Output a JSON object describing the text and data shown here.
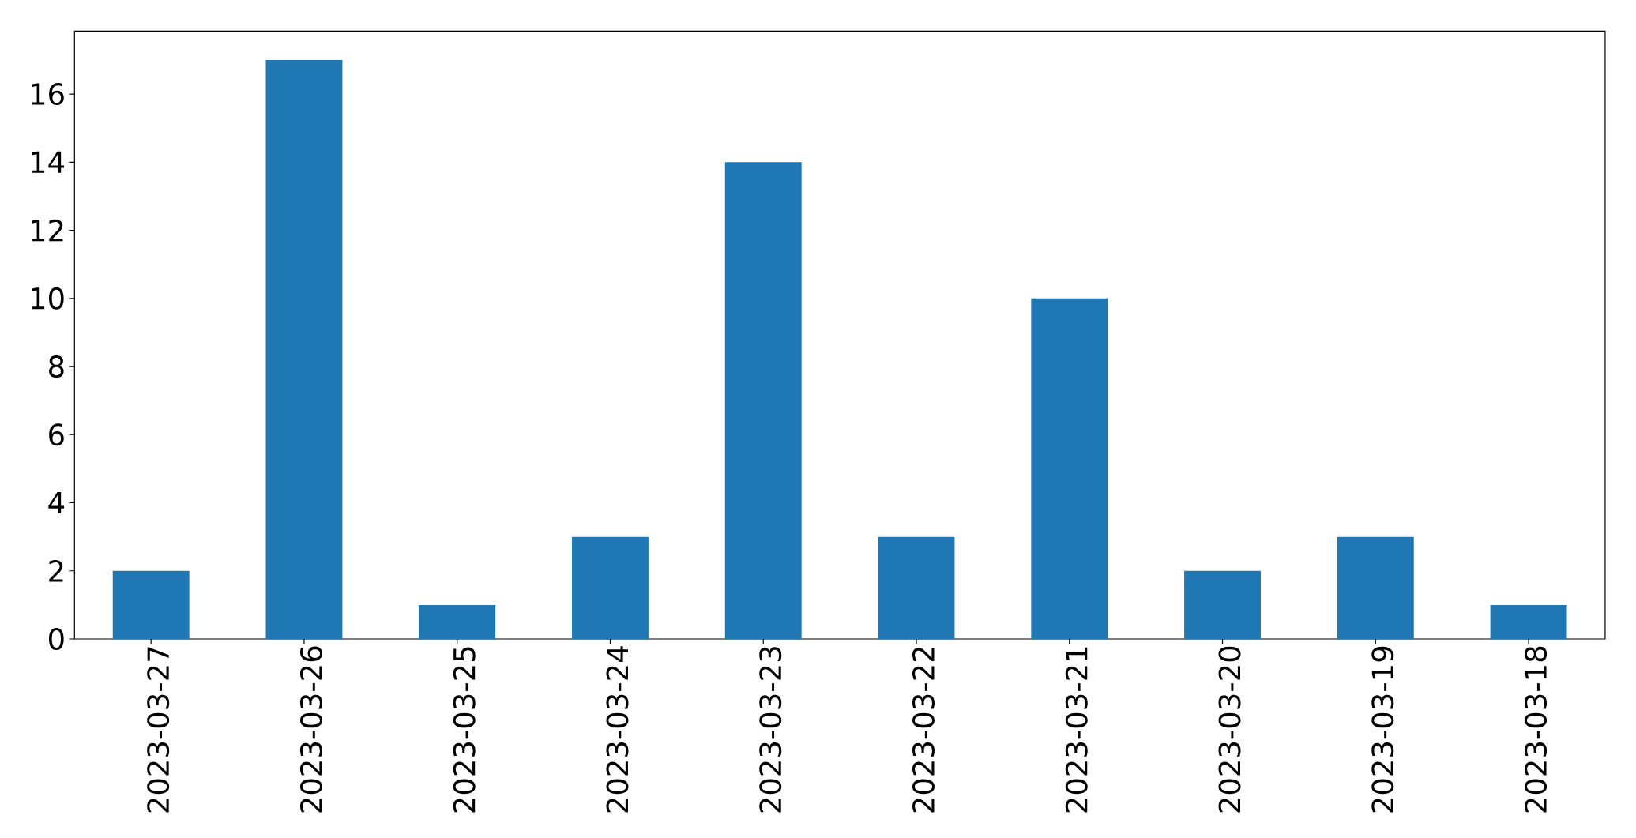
{
  "chart_data": {
    "type": "bar",
    "categories": [
      "2023-03-27",
      "2023-03-26",
      "2023-03-25",
      "2023-03-24",
      "2023-03-23",
      "2023-03-22",
      "2023-03-21",
      "2023-03-20",
      "2023-03-19",
      "2023-03-18"
    ],
    "values": [
      2,
      17,
      1,
      3,
      14,
      3,
      10,
      2,
      3,
      1
    ],
    "color": "#1f77b4",
    "ylim": [
      0,
      17.85
    ],
    "yticks": [
      0,
      2,
      4,
      6,
      8,
      10,
      12,
      14,
      16
    ]
  }
}
